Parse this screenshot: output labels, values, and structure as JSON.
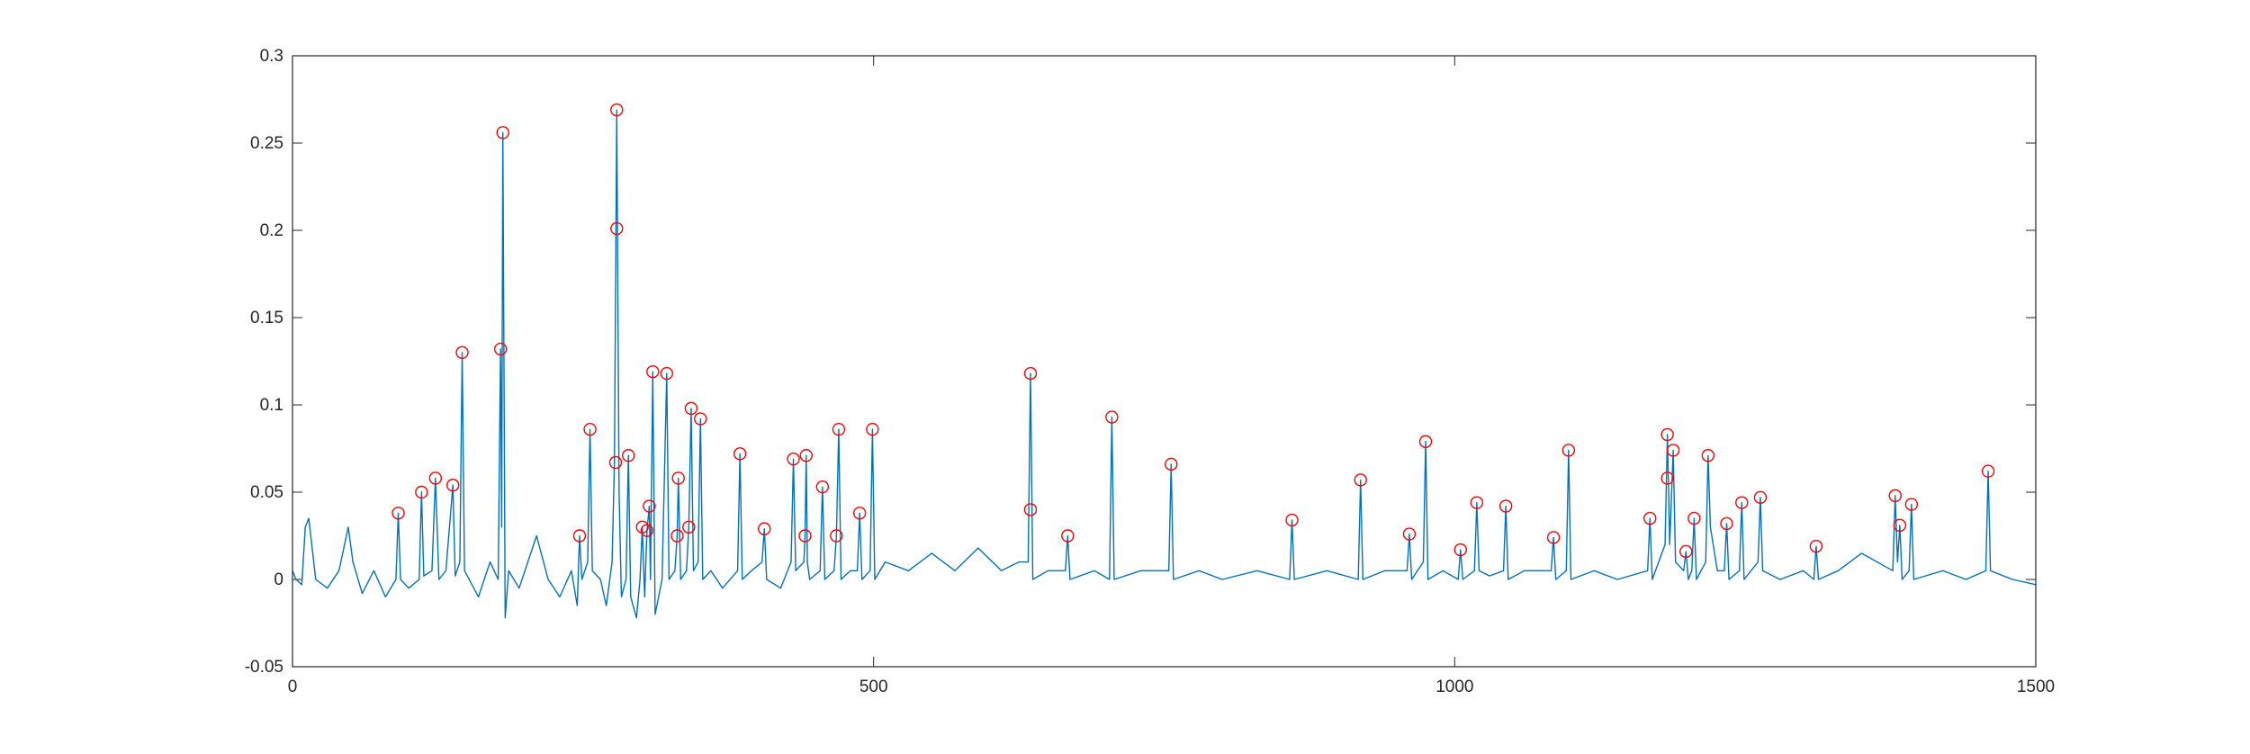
{
  "chart_data": {
    "type": "line",
    "xlim": [
      0,
      1500
    ],
    "xticks": [
      0,
      500,
      1000,
      1500
    ],
    "ylim": [
      -0.05,
      0.3
    ],
    "yticks": [
      -0.05,
      0,
      0.05,
      0.1,
      0.15,
      0.2,
      0.25,
      0.3
    ],
    "grid": false,
    "box": true,
    "series": [
      {
        "type": "line",
        "color": "#0072bd",
        "x": [
          0,
          3,
          8,
          11,
          14,
          20,
          30,
          40,
          48,
          52,
          60,
          70,
          80,
          89,
          91,
          93,
          100,
          109,
          111,
          113,
          120,
          123,
          126,
          132,
          138,
          140,
          144,
          146,
          148,
          160,
          170,
          177,
          179,
          180,
          181,
          183,
          186,
          195,
          210,
          220,
          230,
          240,
          245,
          247,
          249,
          254,
          256,
          258,
          265,
          270,
          275,
          277,
          279,
          281,
          283,
          287,
          289,
          291,
          296,
          299,
          301,
          303,
          305,
          307,
          308,
          310,
          312,
          318,
          322,
          324,
          329,
          331,
          332,
          334,
          339,
          341,
          343,
          345,
          349,
          351,
          353,
          360,
          370,
          383,
          385,
          387,
          395,
          404,
          406,
          408,
          420,
          429,
          431,
          433,
          440,
          441,
          442,
          443,
          445,
          454,
          456,
          458,
          466,
          468,
          470,
          472,
          480,
          486,
          488,
          490,
          497,
          499,
          501,
          510,
          530,
          550,
          570,
          590,
          610,
          625,
          633,
          635,
          637,
          650,
          665,
          667,
          669,
          690,
          703,
          705,
          707,
          730,
          754,
          756,
          758,
          780,
          800,
          830,
          858,
          860,
          862,
          890,
          917,
          919,
          921,
          940,
          959,
          961,
          963,
          973,
          975,
          977,
          990,
          1003,
          1005,
          1007,
          1017,
          1019,
          1021,
          1030,
          1042,
          1044,
          1046,
          1060,
          1083,
          1085,
          1087,
          1096,
          1098,
          1100,
          1120,
          1140,
          1166,
          1168,
          1170,
          1181,
          1183,
          1185,
          1188,
          1190,
          1197,
          1199,
          1201,
          1204,
          1206,
          1208,
          1216,
          1218,
          1220,
          1226,
          1232,
          1234,
          1236,
          1245,
          1247,
          1249,
          1261,
          1263,
          1265,
          1280,
          1300,
          1309,
          1311,
          1313,
          1330,
          1350,
          1377,
          1379,
          1381,
          1383,
          1385,
          1391,
          1393,
          1395,
          1420,
          1440,
          1457,
          1459,
          1461,
          1480,
          1500
        ],
        "values": [
          0.005,
          0,
          -0.003,
          0.03,
          0.035,
          0,
          -0.005,
          0.005,
          0.03,
          0.01,
          -0.008,
          0.005,
          -0.01,
          0,
          0.038,
          0,
          -0.005,
          0,
          0.05,
          0.002,
          0.005,
          0.058,
          0,
          0.005,
          0.054,
          0.002,
          0.01,
          0.13,
          0.005,
          -0.01,
          0.01,
          0,
          0.132,
          0.03,
          0.256,
          -0.022,
          0.005,
          -0.005,
          0.025,
          0,
          -0.01,
          0.005,
          -0.015,
          0.025,
          0,
          0.01,
          0.086,
          0.005,
          0,
          -0.015,
          0.01,
          0.067,
          0.269,
          0.05,
          -0.01,
          0,
          0.071,
          -0.01,
          -0.022,
          0,
          0.03,
          -0.01,
          0.028,
          0.042,
          0,
          0.119,
          -0.02,
          0,
          0.118,
          0,
          0.005,
          0.025,
          0.058,
          0,
          0.005,
          0.03,
          0.098,
          0.005,
          0.01,
          0.092,
          0,
          0.005,
          -0.005,
          0.005,
          0.072,
          0,
          0.005,
          0.01,
          0.029,
          0,
          -0.005,
          0.01,
          0.069,
          0.005,
          0.01,
          0.025,
          0.071,
          0.01,
          0,
          0.005,
          0.053,
          0,
          0.005,
          0.025,
          0.086,
          0,
          0.005,
          0.005,
          0.038,
          0,
          0.005,
          0.086,
          0,
          0.01,
          0.005,
          0.015,
          0.005,
          0.018,
          0.005,
          0.01,
          0.01,
          0.118,
          0,
          0.005,
          0.005,
          0.025,
          0,
          0.005,
          0,
          0.093,
          0,
          0.005,
          0.005,
          0.066,
          0,
          0.005,
          0,
          0.005,
          0,
          0.034,
          0,
          0.005,
          0,
          0.057,
          0,
          0.005,
          0.005,
          0.026,
          0,
          0.01,
          0.079,
          0,
          0.005,
          0,
          0.017,
          0,
          0.005,
          0.044,
          0.005,
          0.002,
          0.005,
          0.042,
          0,
          0.005,
          0.005,
          0.024,
          0,
          0.005,
          0.074,
          0,
          0.005,
          0,
          0.005,
          0.035,
          0,
          0.02,
          0.083,
          0.02,
          0.074,
          0.01,
          0.005,
          0.016,
          0,
          0.005,
          0.035,
          0,
          0.01,
          0.071,
          0.03,
          0.005,
          0.005,
          0.032,
          0,
          0.005,
          0.044,
          0,
          0.01,
          0.047,
          0.005,
          0,
          0.005,
          0,
          0.019,
          0,
          0.005,
          0.015,
          0.005,
          0.048,
          0.01,
          0.031,
          0,
          0.005,
          0.043,
          0,
          0.005,
          0,
          0.005,
          0.062,
          0.005,
          0,
          -0.003
        ]
      },
      {
        "type": "scatter",
        "color": "#ff0000",
        "marker": "circle",
        "x": [
          91,
          111,
          123,
          138,
          146,
          179,
          181,
          247,
          256,
          278,
          279,
          279,
          289,
          301,
          305,
          307,
          310,
          322,
          331,
          332,
          341,
          343,
          351,
          385,
          406,
          431,
          441,
          442,
          456,
          468,
          470,
          488,
          499,
          635,
          635,
          667,
          705,
          756,
          860,
          919,
          961,
          975,
          1005,
          1019,
          1044,
          1085,
          1098,
          1168,
          1183,
          1183,
          1188,
          1199,
          1206,
          1218,
          1234,
          1247,
          1263,
          1311,
          1379,
          1383,
          1393,
          1459
        ],
        "values": [
          0.038,
          0.05,
          0.058,
          0.054,
          0.13,
          0.132,
          0.256,
          0.025,
          0.086,
          0.067,
          0.269,
          0.201,
          0.071,
          0.03,
          0.028,
          0.042,
          0.119,
          0.118,
          0.025,
          0.058,
          0.03,
          0.098,
          0.092,
          0.072,
          0.029,
          0.069,
          0.025,
          0.071,
          0.053,
          0.025,
          0.086,
          0.038,
          0.086,
          0.118,
          0.04,
          0.025,
          0.093,
          0.066,
          0.034,
          0.057,
          0.026,
          0.079,
          0.017,
          0.044,
          0.042,
          0.024,
          0.074,
          0.035,
          0.083,
          0.058,
          0.074,
          0.016,
          0.035,
          0.071,
          0.032,
          0.044,
          0.047,
          0.019,
          0.048,
          0.031,
          0.043,
          0.062
        ]
      }
    ]
  }
}
